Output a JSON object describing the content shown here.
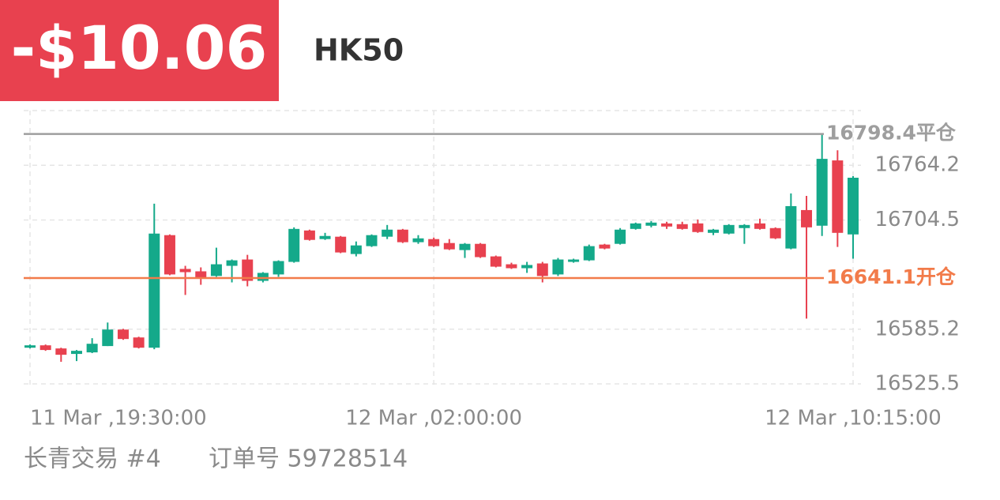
{
  "header": {
    "pnl": "-$10.06",
    "symbol": "HK50"
  },
  "chart_data": {
    "type": "candlestick",
    "up_color": "#14a98a",
    "down_color": "#e8414f",
    "grid": true,
    "ylim": [
      16525.5,
      16823.9
    ],
    "yticks": [
      16525.5,
      16585.2,
      16704.5,
      16764.2
    ],
    "xlim": [
      0,
      53
    ],
    "xticks": [
      {
        "value": 0,
        "label": "11 Mar ,19:30:00"
      },
      {
        "value": 26,
        "label": "12 Mar ,02:00:00"
      },
      {
        "value": 53,
        "label": "12 Mar ,10:15:00"
      }
    ],
    "reference_lines": [
      {
        "value": 16798.4,
        "label": "16798.4平仓",
        "color": "#9e9e9e"
      },
      {
        "value": 16641.1,
        "label": "16641.1开仓",
        "color": "#f27b4a"
      }
    ],
    "open": [
      16565.0,
      16567.6,
      16564.2,
      16558.2,
      16559.9,
      16566.8,
      16584.8,
      16576.2,
      16565.0,
      16687.9,
      16651.0,
      16648.4,
      16643.3,
      16654.4,
      16661.3,
      16638.0,
      16645.0,
      16658.7,
      16693.0,
      16683.6,
      16686.2,
      16667.3,
      16675.9,
      16686.2,
      16693.9,
      16680.2,
      16683.6,
      16679.3,
      16671.6,
      16678.4,
      16664.7,
      16656.1,
      16651.8,
      16657.0,
      16645.0,
      16658.7,
      16660.4,
      16677.6,
      16678.4,
      16694.7,
      16698.2,
      16700.7,
      16699.9,
      16700.7,
      16690.4,
      16689.6,
      16695.6,
      16700.7,
      16695.6,
      16673.3,
      16715.3,
      16698.2,
      16769.5,
      16688.7
    ],
    "high": [
      16568.5,
      16568.5,
      16565.0,
      16562.5,
      16575.4,
      16592.5,
      16585.6,
      16577.0,
      16722.2,
      16688.7,
      16654.4,
      16652.7,
      16674.2,
      16661.3,
      16666.4,
      16647.5,
      16660.4,
      16696.4,
      16693.9,
      16690.4,
      16687.0,
      16681.0,
      16688.7,
      16699.0,
      16694.7,
      16687.9,
      16685.3,
      16683.6,
      16679.3,
      16679.3,
      16665.6,
      16657.8,
      16658.7,
      16658.7,
      16663.0,
      16662.2,
      16677.6,
      16678.4,
      16695.6,
      16701.6,
      16703.3,
      16702.5,
      16702.5,
      16705.0,
      16694.7,
      16699.9,
      16699.9,
      16705.9,
      16696.4,
      16733.4,
      16730.8,
      16797.8,
      16780.6,
      16752.3
    ],
    "low": [
      16564.2,
      16561.6,
      16549.6,
      16550.4,
      16559.1,
      16566.8,
      16573.6,
      16564.2,
      16563.3,
      16644.1,
      16622.6,
      16633.7,
      16642.4,
      16636.3,
      16632.0,
      16636.3,
      16642.4,
      16657.8,
      16681.9,
      16682.7,
      16668.2,
      16664.7,
      16675.0,
      16683.6,
      16679.3,
      16678.4,
      16675.0,
      16671.6,
      16663.0,
      16663.0,
      16652.7,
      16651.0,
      16646.7,
      16636.3,
      16643.3,
      16657.8,
      16659.6,
      16672.4,
      16677.6,
      16693.9,
      16696.4,
      16694.7,
      16693.9,
      16690.4,
      16687.9,
      16688.7,
      16678.4,
      16693.9,
      16683.6,
      16672.4,
      16596.8,
      16687.0,
      16675.0,
      16662.2
    ],
    "close": [
      16567.6,
      16562.5,
      16557.3,
      16561.6,
      16569.3,
      16584.8,
      16574.5,
      16565.0,
      16689.6,
      16645.0,
      16647.5,
      16640.7,
      16656.1,
      16660.4,
      16638.0,
      16646.7,
      16659.6,
      16694.7,
      16682.7,
      16687.0,
      16669.0,
      16676.7,
      16687.9,
      16693.9,
      16680.2,
      16684.4,
      16675.9,
      16672.4,
      16678.4,
      16663.9,
      16653.5,
      16651.8,
      16655.3,
      16643.3,
      16661.3,
      16661.3,
      16675.9,
      16673.3,
      16693.9,
      16700.7,
      16701.6,
      16697.3,
      16694.7,
      16691.3,
      16693.9,
      16699.0,
      16699.0,
      16694.7,
      16684.4,
      16719.6,
      16696.4,
      16771.2,
      16690.4,
      16750.6
    ]
  },
  "footer": {
    "account": "长青交易 #4",
    "order": "订单号 59728514"
  }
}
